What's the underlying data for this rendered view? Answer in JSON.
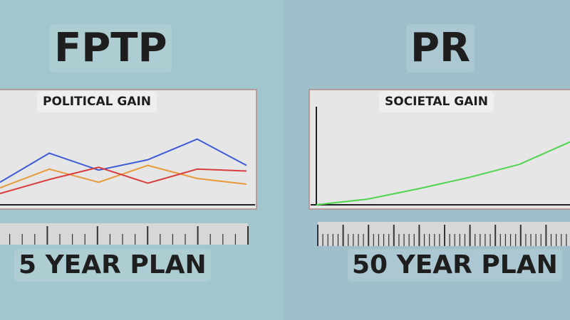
{
  "colors": {
    "left_bg": "#a2c6cd",
    "right_bg": "#9fbfcb",
    "plot_bg": "#e6e6e6",
    "frame": "#b18a86",
    "axis": "#222222",
    "ruler_bg": "#d7d7d7",
    "ruler_tick": "#333333"
  },
  "left": {
    "title": "FPTP",
    "plan_label": "5 YEAR PLAN",
    "ruler": {
      "major_ticks": 5,
      "minor_per_major": 4
    }
  },
  "right": {
    "title": "PR",
    "plan_label": "50 YEAR PLAN",
    "ruler": {
      "major_ticks": 50,
      "minor_per_major": 0
    }
  },
  "chart_data": [
    {
      "type": "line",
      "title": "POLITICAL GAIN",
      "xlabel": "",
      "ylabel": "",
      "x": [
        0,
        1,
        2,
        3,
        4,
        5
      ],
      "xlim": [
        0,
        5
      ],
      "ylim": [
        0,
        100
      ],
      "grid": false,
      "series": [
        {
          "color": "#3d5bd8",
          "values": [
            24,
            55,
            37,
            48,
            70,
            42
          ]
        },
        {
          "color": "#e89a3a",
          "values": [
            18,
            38,
            24,
            42,
            28,
            22
          ]
        },
        {
          "color": "#d83c3c",
          "values": [
            12,
            27,
            40,
            23,
            38,
            36
          ]
        }
      ]
    },
    {
      "type": "line",
      "title": "SOCIETAL GAIN",
      "xlabel": "",
      "ylabel": "",
      "x": [
        0,
        10,
        20,
        30,
        40,
        50
      ],
      "xlim": [
        0,
        50
      ],
      "ylim": [
        0,
        100
      ],
      "grid": false,
      "series": [
        {
          "color": "#4fd44f",
          "values": [
            0,
            6,
            17,
            29,
            43,
            67
          ]
        }
      ]
    }
  ]
}
